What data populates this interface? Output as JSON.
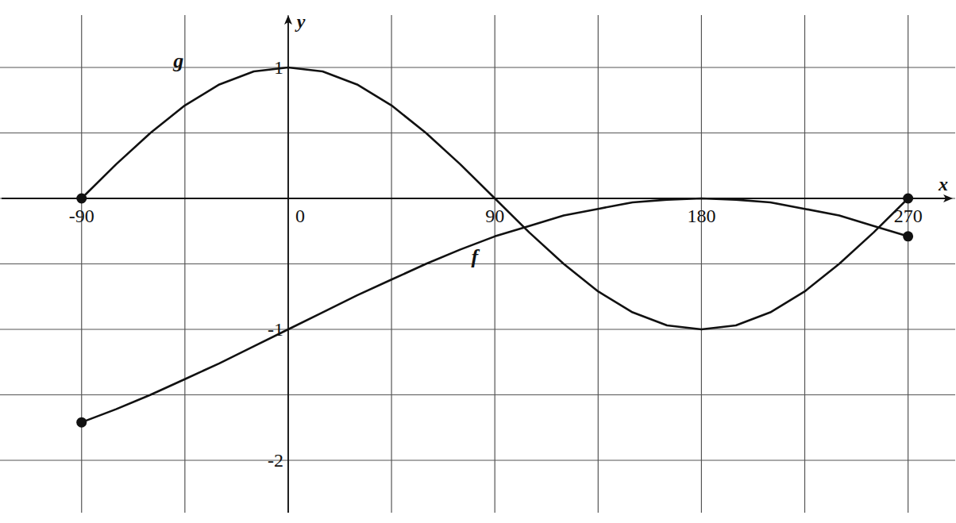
{
  "chart_data": {
    "type": "line",
    "x_label": "x",
    "y_label": "y",
    "x": [
      -90,
      -75,
      -60,
      -45,
      -30,
      -15,
      0,
      15,
      30,
      45,
      60,
      75,
      90,
      105,
      120,
      135,
      150,
      165,
      180,
      195,
      210,
      225,
      240,
      255,
      270
    ],
    "series": [
      {
        "name": "g",
        "color": "#111111",
        "marker": "endpoints",
        "line_style": "solid",
        "values": [
          0,
          0.26,
          0.5,
          0.71,
          0.87,
          0.97,
          1,
          0.97,
          0.87,
          0.71,
          0.5,
          0.26,
          0,
          -0.26,
          -0.5,
          -0.71,
          -0.87,
          -0.97,
          -1,
          -0.97,
          -0.87,
          -0.71,
          -0.5,
          -0.26,
          0
        ]
      },
      {
        "name": "f",
        "color": "#111111",
        "marker": "endpoints",
        "line_style": "solid",
        "values": [
          -1.71,
          -1.61,
          -1.5,
          -1.38,
          -1.26,
          -1.13,
          -1,
          -0.87,
          -0.74,
          -0.62,
          -0.5,
          -0.39,
          -0.29,
          -0.21,
          -0.13,
          -0.08,
          -0.03,
          -0.01,
          0,
          -0.01,
          -0.03,
          -0.08,
          -0.13,
          -0.21,
          -0.29
        ]
      }
    ],
    "xlim": [
      -120,
      285
    ],
    "ylim": [
      -2.4,
      1.4
    ],
    "xticks": [
      -90,
      0,
      90,
      180,
      270
    ],
    "yticks": [
      -2,
      -1,
      1
    ],
    "grid": true
  }
}
